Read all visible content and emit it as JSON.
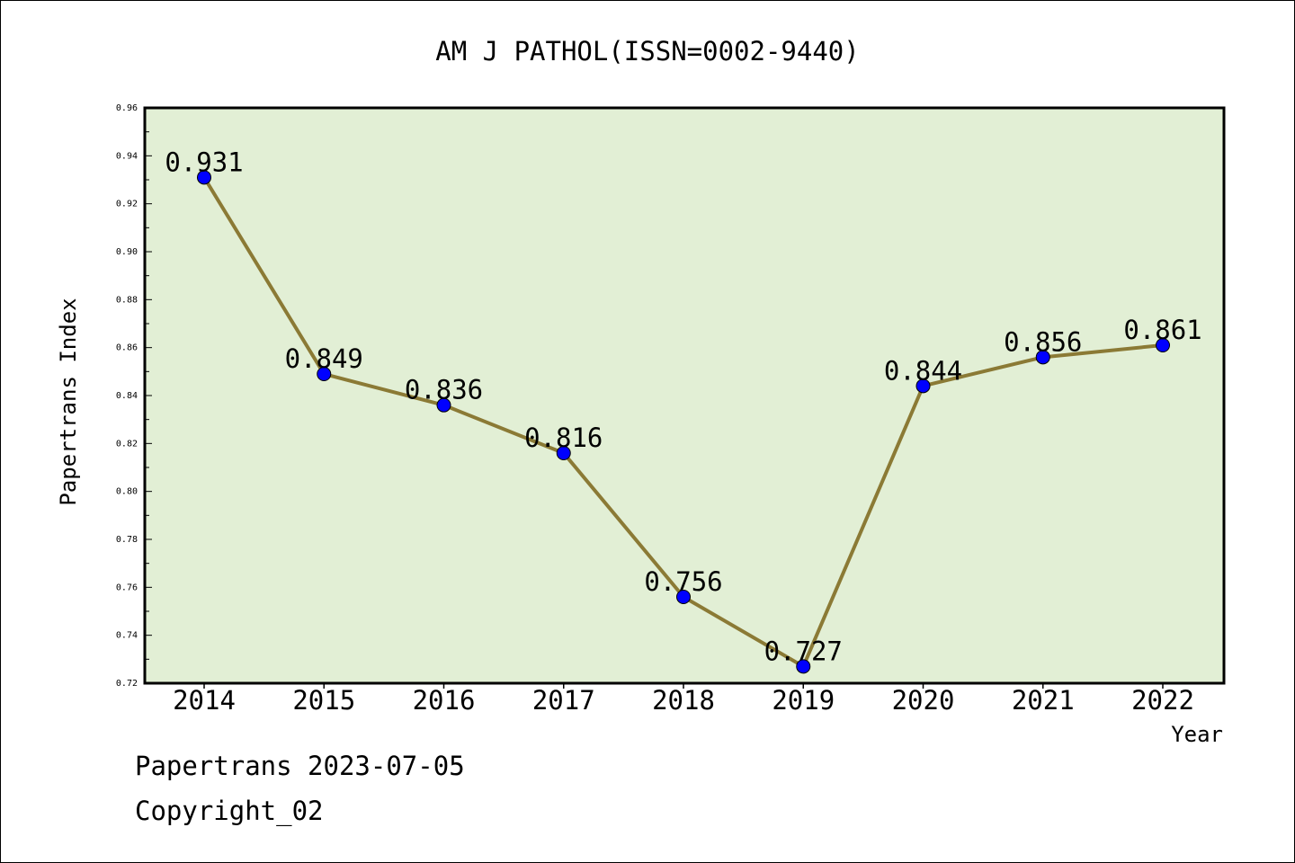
{
  "chart_data": {
    "type": "line",
    "title": "AM J PATHOL(ISSN=0002-9440)",
    "xlabel": "Year",
    "ylabel": "Papertrans Index",
    "categories": [
      "2014",
      "2015",
      "2016",
      "2017",
      "2018",
      "2019",
      "2020",
      "2021",
      "2022"
    ],
    "series": [
      {
        "values": [
          0.931,
          0.849,
          0.836,
          0.816,
          0.756,
          0.727,
          0.844,
          0.856,
          0.861
        ]
      }
    ],
    "data_labels": [
      "0.931",
      "0.849",
      "0.836",
      "0.816",
      "0.756",
      "0.727",
      "0.844",
      "0.856",
      "0.861"
    ],
    "ylim": [
      0.72,
      0.96
    ],
    "yticks": [
      "0.72",
      "0.74",
      "0.76",
      "0.78",
      "0.80",
      "0.82",
      "0.84",
      "0.86",
      "0.88",
      "0.90",
      "0.92",
      "0.94",
      "0.96"
    ],
    "grid": false,
    "legend": "none",
    "colors": {
      "plot_background": "#e2efd5",
      "line": "#8b7a35",
      "marker": "#0000ff"
    }
  },
  "footer": {
    "line1": "Papertrans 2023-07-05",
    "line2": "Copyright_02"
  }
}
